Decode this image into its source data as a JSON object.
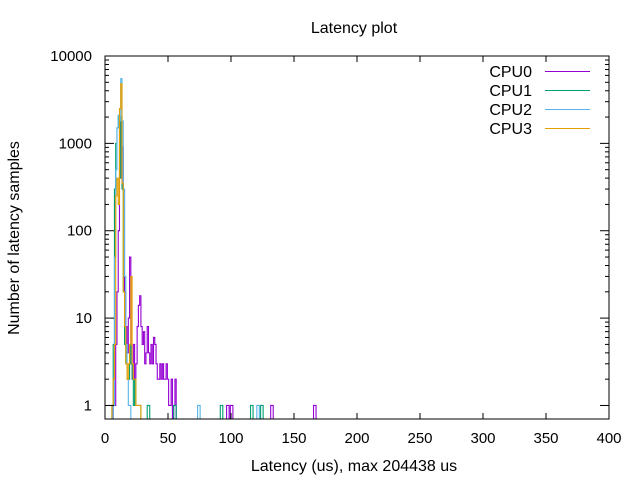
{
  "chart_data": {
    "type": "line",
    "title": "Latency plot",
    "xlabel": "Latency (us), max 204438 us",
    "ylabel": "Number of latency samples",
    "xlim": [
      0,
      400
    ],
    "ylim": [
      0.7,
      10000
    ],
    "y_scale": "log",
    "x_ticks": [
      0,
      50,
      100,
      150,
      200,
      250,
      300,
      350,
      400
    ],
    "y_ticks": [
      1,
      10,
      100,
      1000,
      10000
    ],
    "y_tick_labels": [
      "1",
      "10",
      "100",
      "1000",
      "10000"
    ],
    "grid": false,
    "legend_position": "top-right",
    "series": [
      {
        "name": "CPU0",
        "color": "#9400d3",
        "x": [
          7,
          8,
          9,
          10,
          11,
          12,
          13,
          14,
          15,
          16,
          17,
          18,
          19,
          20,
          21,
          22,
          23,
          24,
          25,
          26,
          27,
          28,
          29,
          30,
          31,
          32,
          33,
          34,
          35,
          36,
          37,
          38,
          39,
          40,
          41,
          42,
          43,
          44,
          45,
          46,
          47,
          48,
          49,
          50,
          51,
          52,
          53,
          55,
          56,
          97,
          98,
          100,
          101,
          132,
          133,
          166,
          167
        ],
        "y": [
          1,
          1,
          5,
          20,
          100,
          400,
          1800,
          900,
          300,
          20,
          8,
          4,
          10,
          50,
          3,
          2,
          5,
          2,
          3,
          8,
          14,
          18,
          8,
          5,
          7,
          3,
          4,
          8,
          4,
          3,
          5,
          3,
          6,
          5,
          3,
          2,
          2,
          3,
          2,
          3,
          2,
          2,
          3,
          2,
          1,
          1,
          2,
          1,
          2,
          1,
          1,
          1,
          1,
          1,
          1,
          1,
          1
        ]
      },
      {
        "name": "CPU1",
        "color": "#009e73",
        "x": [
          6,
          7,
          8,
          9,
          10,
          11,
          12,
          13,
          14,
          15,
          16,
          17,
          18,
          19,
          20,
          21,
          22,
          23,
          24,
          25,
          26,
          27,
          28,
          34,
          35,
          55,
          56,
          92,
          93,
          116,
          117,
          124,
          125
        ],
        "y": [
          1,
          5,
          300,
          1000,
          1500,
          2000,
          400,
          2000,
          300,
          20,
          5,
          3,
          2,
          2,
          5,
          3,
          2,
          1,
          2,
          1,
          1,
          1,
          1,
          1,
          1,
          1,
          1,
          1,
          1,
          1,
          1,
          1,
          1
        ]
      },
      {
        "name": "CPU2",
        "color": "#56b4e9",
        "x": [
          7,
          8,
          9,
          10,
          11,
          12,
          13,
          14,
          15,
          16,
          17,
          18,
          19,
          20,
          74,
          75,
          121,
          122
        ],
        "y": [
          1,
          50,
          500,
          1500,
          2100,
          1800,
          5500,
          1800,
          300,
          30,
          5,
          2,
          1,
          1,
          1,
          1,
          1,
          1
        ]
      },
      {
        "name": "CPU3",
        "color": "#e69f00",
        "x": [
          6,
          7,
          8,
          9,
          10,
          11,
          12,
          13,
          14,
          15,
          16,
          17,
          18,
          19,
          20,
          21,
          22,
          23,
          24,
          25,
          26,
          27,
          28
        ],
        "y": [
          1,
          2,
          5,
          250,
          400,
          200,
          2500,
          4800,
          350,
          20,
          8,
          3,
          2,
          3,
          5,
          30,
          3,
          2,
          2,
          1,
          1,
          1,
          1
        ]
      }
    ]
  }
}
